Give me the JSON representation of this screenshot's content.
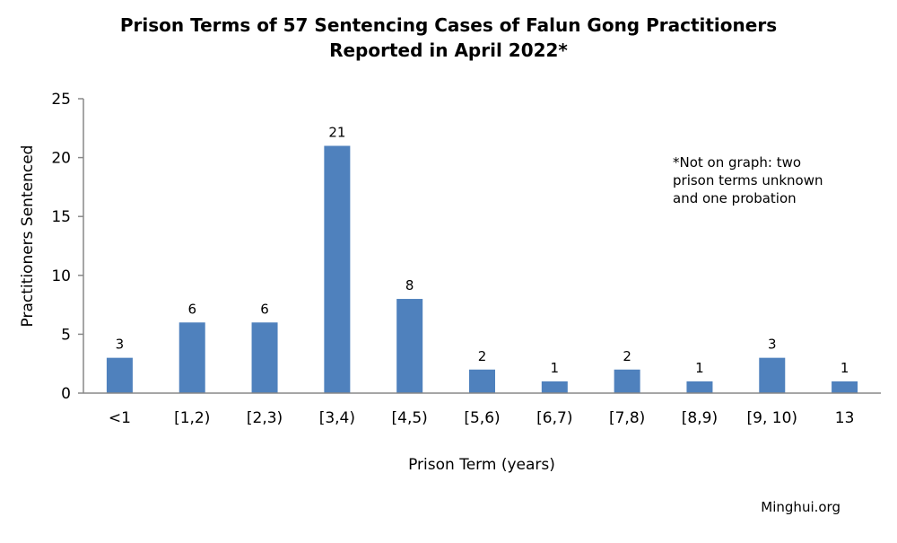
{
  "chart_data": {
    "type": "bar",
    "title_lines": [
      "Prison Terms of 57 Sentencing Cases of Falun Gong Practitioners",
      "Reported in April 2022*"
    ],
    "xlabel": "Prison Term (years)",
    "ylabel": "Practitioners Sentenced",
    "categories": [
      "<1",
      "[1,2)",
      "[2,3)",
      "[3,4)",
      "[4,5)",
      "[5,6)",
      "[6,7)",
      "[7,8)",
      "[8,9)",
      "[9, 10)",
      "13"
    ],
    "values": [
      3,
      6,
      6,
      21,
      8,
      2,
      1,
      2,
      1,
      3,
      1
    ],
    "ylim": [
      0,
      25
    ],
    "yticks": [
      0,
      5,
      10,
      15,
      20,
      25
    ],
    "data_labels": true,
    "grid": false,
    "legend": "none",
    "bar_color": "#4F81BD",
    "annotation_lines": [
      "*Not on graph: two",
      "prison terms unknown",
      "and one probation"
    ],
    "source": "Minghui.org"
  }
}
